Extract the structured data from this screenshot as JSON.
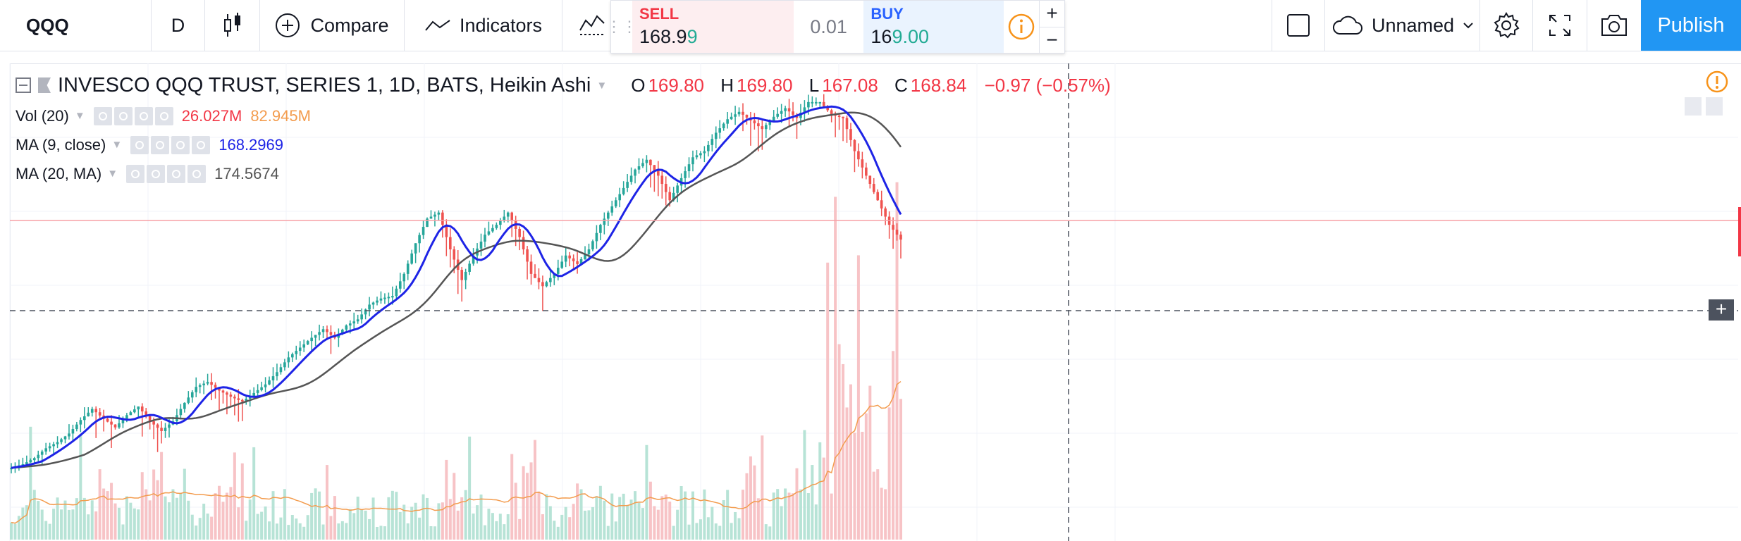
{
  "toolbar": {
    "symbol": "QQQ",
    "interval": "D",
    "compare_label": "Compare",
    "indicators_label": "Indicators"
  },
  "trade_panel": {
    "sell_label": "SELL",
    "sell_price_main": "168.9",
    "sell_price_tail": "9",
    "spread": "0.01",
    "buy_label": "BUY",
    "buy_price_main": "16",
    "buy_price_tail": "9.00",
    "plus": "+",
    "minus": "−"
  },
  "right_toolbar": {
    "layout_name": "Unnamed",
    "publish_label": "Publish"
  },
  "legend": {
    "title": "INVESCO QQQ TRUST, SERIES 1, 1D, BATS, Heikin Ashi",
    "open_label": "O",
    "open": "169.80",
    "high_label": "H",
    "high": "169.80",
    "low_label": "L",
    "low": "167.08",
    "close_label": "C",
    "close": "168.84",
    "change": "−0.97 (−0.57%)",
    "vol_label": "Vol (20)",
    "vol_value": "26.027M",
    "vol_ma": "82.945M",
    "ma1_label": "MA (9, close)",
    "ma1_value": "168.2969",
    "ma2_label": "MA (20, MA)",
    "ma2_value": "174.5674"
  },
  "colors": {
    "up": "#26a69a",
    "down": "#ef5350",
    "ma9": "#1e24e6",
    "ma20": "#555555",
    "vol_ma": "#f39c4e",
    "accent": "#2196f3"
  },
  "chart_data": {
    "type": "candlestick",
    "series_hint": "Heikin Ashi daily candles with MA(9) blue and MA(20) gray; volume bars with MA line",
    "close_values": [
      150.2,
      150.5,
      151.0,
      151.8,
      152.3,
      153.0,
      154.1,
      155.0,
      154.2,
      153.5,
      154.5,
      155.2,
      154.0,
      153.2,
      154.0,
      155.5,
      156.8,
      157.2,
      156.5,
      156.0,
      155.6,
      156.3,
      157.0,
      158.0,
      159.2,
      160.0,
      160.8,
      161.5,
      160.8,
      161.8,
      162.3,
      163.5,
      164.0,
      164.2,
      166.0,
      168.5,
      170.5,
      171.0,
      168.0,
      165.5,
      167.5,
      169.2,
      170.0,
      171.0,
      169.0,
      166.0,
      165.0,
      166.0,
      167.5,
      166.8,
      168.0,
      170.0,
      171.5,
      173.0,
      174.5,
      175.3,
      174.0,
      172.0,
      173.8,
      175.5,
      176.0,
      177.5,
      178.6,
      179.2,
      178.5,
      177.8,
      178.8,
      179.5,
      178.7,
      180.0,
      180.0,
      179.0,
      178.7,
      176.0,
      174.0,
      172.0,
      170.0,
      168.8
    ],
    "current_price": 168.84
  }
}
